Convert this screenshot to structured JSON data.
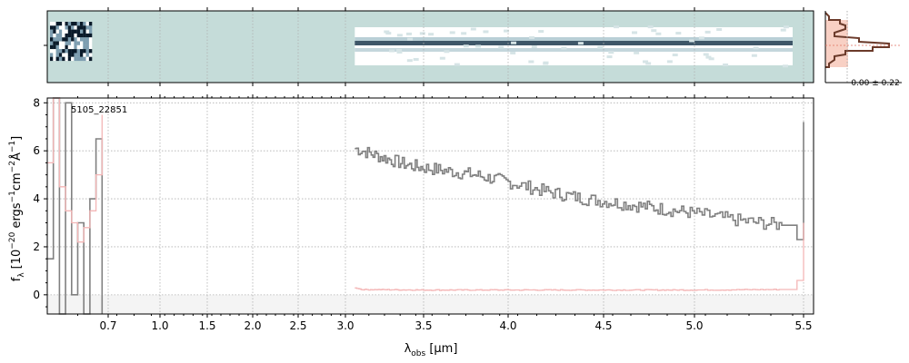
{
  "chart_data": {
    "type": "line",
    "spectrum_id": "5105_22851",
    "xlabel": "λ",
    "xlabel_sub": "obs",
    "xlabel_unit": " [μm]",
    "ylabel_main": "f",
    "ylabel_sub": "λ",
    "ylabel_unit": "[10",
    "ylabel_exp1": "−20",
    "ylabel_mid": " ergs",
    "ylabel_exp2": "−1",
    "ylabel_mid2": "cm",
    "ylabel_exp3": "−2",
    "ylabel_mid3": "Å",
    "ylabel_exp4": "−1",
    "ylabel_end": "]",
    "x_tick_labels": [
      "0.7",
      "1.0",
      "1.5",
      "2.0",
      "2.5",
      "3.0",
      "3.5",
      "4.0",
      "4.5",
      "5.0",
      "5.5"
    ],
    "x_ticks": [
      0.7,
      1.0,
      1.5,
      2.0,
      2.5,
      3.0,
      3.5,
      4.0,
      4.5,
      5.0,
      5.5
    ],
    "x_scale": "arcsinh-like (compressed at short wavelengths)",
    "xlim": [
      0.6,
      5.52
    ],
    "ylim": [
      -0.8,
      8.2
    ],
    "y_ticks": [
      0,
      2,
      4,
      6,
      8
    ],
    "y_tick_labels": [
      "0",
      "2",
      "4",
      "6",
      "8"
    ],
    "grid": true,
    "series": [
      {
        "role": "flux",
        "color": "#808080",
        "segments": [
          {
            "x": [
              0.6,
              0.61,
              0.62,
              0.63,
              0.64,
              0.65,
              0.66,
              0.67,
              0.68,
              0.69
            ],
            "y": [
              1.5,
              8.2,
              -0.8,
              8.0,
              0.0,
              3.0,
              -0.8,
              4.0,
              6.5,
              -0.8
            ]
          },
          {
            "x": [
              3.06,
              3.2,
              3.4,
              3.6,
              3.8,
              4.0,
              4.2,
              4.4,
              4.6,
              4.8,
              5.0,
              5.2,
              5.4,
              5.47,
              5.5
            ],
            "y": [
              6.1,
              5.8,
              5.4,
              5.2,
              5.0,
              4.7,
              4.3,
              4.0,
              3.8,
              3.6,
              3.4,
              3.1,
              2.9,
              2.3,
              7.2
            ]
          }
        ]
      },
      {
        "role": "uncertainty",
        "color": "#f4b6b6",
        "segments": [
          {
            "x": [
              0.6,
              0.61,
              0.62,
              0.63,
              0.64,
              0.65,
              0.66,
              0.67,
              0.68,
              0.69
            ],
            "y": [
              5.5,
              8.2,
              4.5,
              3.5,
              3.0,
              2.2,
              2.8,
              3.5,
              5.0,
              7.5
            ]
          },
          {
            "x": [
              3.06,
              3.1,
              3.5,
              4.0,
              4.5,
              5.0,
              5.4,
              5.47,
              5.5
            ],
            "y": [
              0.3,
              0.22,
              0.2,
              0.2,
              0.2,
              0.2,
              0.22,
              0.6,
              3.0
            ]
          }
        ]
      }
    ],
    "side_histogram": {
      "label": "0.00 ± 0.22"
    }
  },
  "colors": {
    "image_bg": "#c5dcd9",
    "flux": "#808080",
    "uncertainty": "#f4b6b6",
    "hist": "#6b3a2a",
    "hist_fill": "#f8d0c4",
    "grid": "#b0b0b0"
  }
}
